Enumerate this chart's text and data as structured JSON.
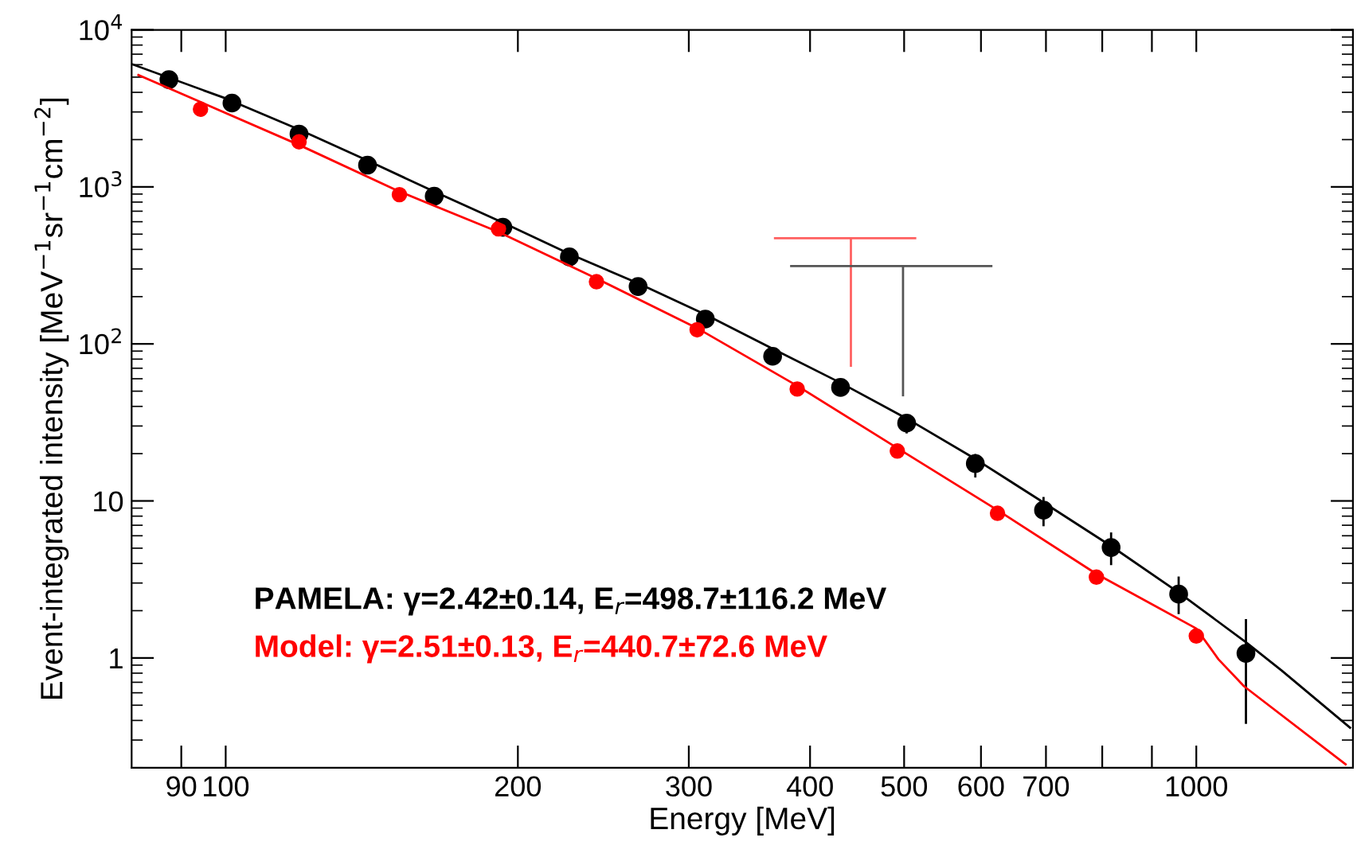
{
  "chart_data": {
    "type": "scatter",
    "xlabel": "Energy [MeV]",
    "ylabel": "Event-integrated intensity [MeV$^{−1}$sr$^{−1}$cm$^{−2}$]",
    "log": "xy",
    "grid": false,
    "legend": false,
    "xlim": [
      80,
      1450
    ],
    "ylim": [
      0.2,
      10000
    ],
    "xticks": [
      90,
      100,
      200,
      300,
      400,
      500,
      600,
      700,
      {
        "value": 800,
        "label": null
      },
      {
        "value": 900,
        "label": null
      },
      1000
    ],
    "yticks": [
      1,
      10,
      {
        "value": 100,
        "label": "10$^{2}$"
      },
      {
        "value": 1000,
        "label": "10$^{3}$"
      },
      {
        "value": 10000,
        "label": "10$^{4}$"
      }
    ],
    "annotations": [
      "PAMELA: γ=2.42±0.14, E$_{r}$=498.7±116.2 MeV",
      "Model: γ=2.51±0.13, E$_{r}$=440.7±72.6 MeV"
    ],
    "series": [
      {
        "marker": "circle",
        "color": "#000000",
        "x": [
          87.4,
          101.5,
          119,
          140,
          164,
          193,
          226,
          266,
          312,
          366,
          430,
          503,
          592,
          696,
          817,
          959,
          1125
        ],
        "values": [
          4820,
          3420,
          2170,
          1375,
          872,
          553,
          358,
          232,
          144,
          83.4,
          52.8,
          31.3,
          17.3,
          8.73,
          5.05,
          2.55,
          1.07
        ],
        "errors": [
          500,
          350,
          250,
          150,
          100,
          60,
          40,
          28,
          17,
          10,
          5,
          [
            26.9,
            35.8
          ],
          [
            14.1,
            19.9
          ],
          [
            6.9,
            10.6
          ],
          [
            3.9,
            6.3
          ],
          [
            1.9,
            3.3
          ],
          [
            0.38,
            1.77
          ]
        ]
      },
      {
        "marker": "circle",
        "color": "#ff0000",
        "x": [
          94.2,
          119,
          151,
          191,
          241,
          306,
          388,
          492,
          624,
          789,
          1000
        ],
        "values": [
          3126,
          1936,
          892,
          541,
          249,
          123,
          51.6,
          20.8,
          8.34,
          3.27,
          1.38
        ],
        "errors": [
          300,
          180,
          90,
          50,
          25,
          12,
          5,
          2,
          0.8,
          0.3,
          0.13
        ]
      },
      {
        "type": "line",
        "marker": "none",
        "color": "#000000",
        "x": [
          80,
          100,
          119,
          140,
          164,
          193,
          226,
          266,
          312,
          366,
          430,
          503,
          592,
          696,
          817,
          959,
          1125,
          1225,
          1440
        ],
        "values": [
          6060,
          3660,
          2320,
          1470,
          934,
          592,
          375,
          243,
          154,
          93.3,
          56.5,
          33.5,
          18.5,
          9.77,
          5.16,
          2.61,
          1.26,
          0.83,
          0.36
        ]
      },
      {
        "type": "line",
        "marker": "none",
        "color": "#ff0000",
        "x": [
          81.3,
          119,
          151,
          191,
          241,
          306,
          388,
          492,
          624,
          789,
          1000,
          1054,
          1120,
          1425
        ],
        "values": [
          5160,
          1850,
          934,
          516,
          261,
          126,
          54.1,
          21.7,
          8.73,
          3.43,
          1.54,
          0.98,
          0.66,
          0.21
        ]
      },
      {
        "type": "line",
        "marker": "none",
        "color": "#ff6060",
        "x": [
          368.1,
          513.3
        ],
        "values": [
          471,
          471
        ]
      },
      {
        "type": "line",
        "marker": "none",
        "color": "#ff6060",
        "x": [
          440.7,
          440.7
        ],
        "values": [
          471,
          72.6
        ]
      },
      {
        "type": "line",
        "marker": "none",
        "color": "#555555",
        "x": [
          382.5,
          614.9
        ],
        "values": [
          313,
          313
        ]
      },
      {
        "type": "line",
        "marker": "none",
        "color": "#555555",
        "x": [
          498.7,
          498.7
        ],
        "values": [
          313,
          47.1
        ]
      }
    ]
  }
}
